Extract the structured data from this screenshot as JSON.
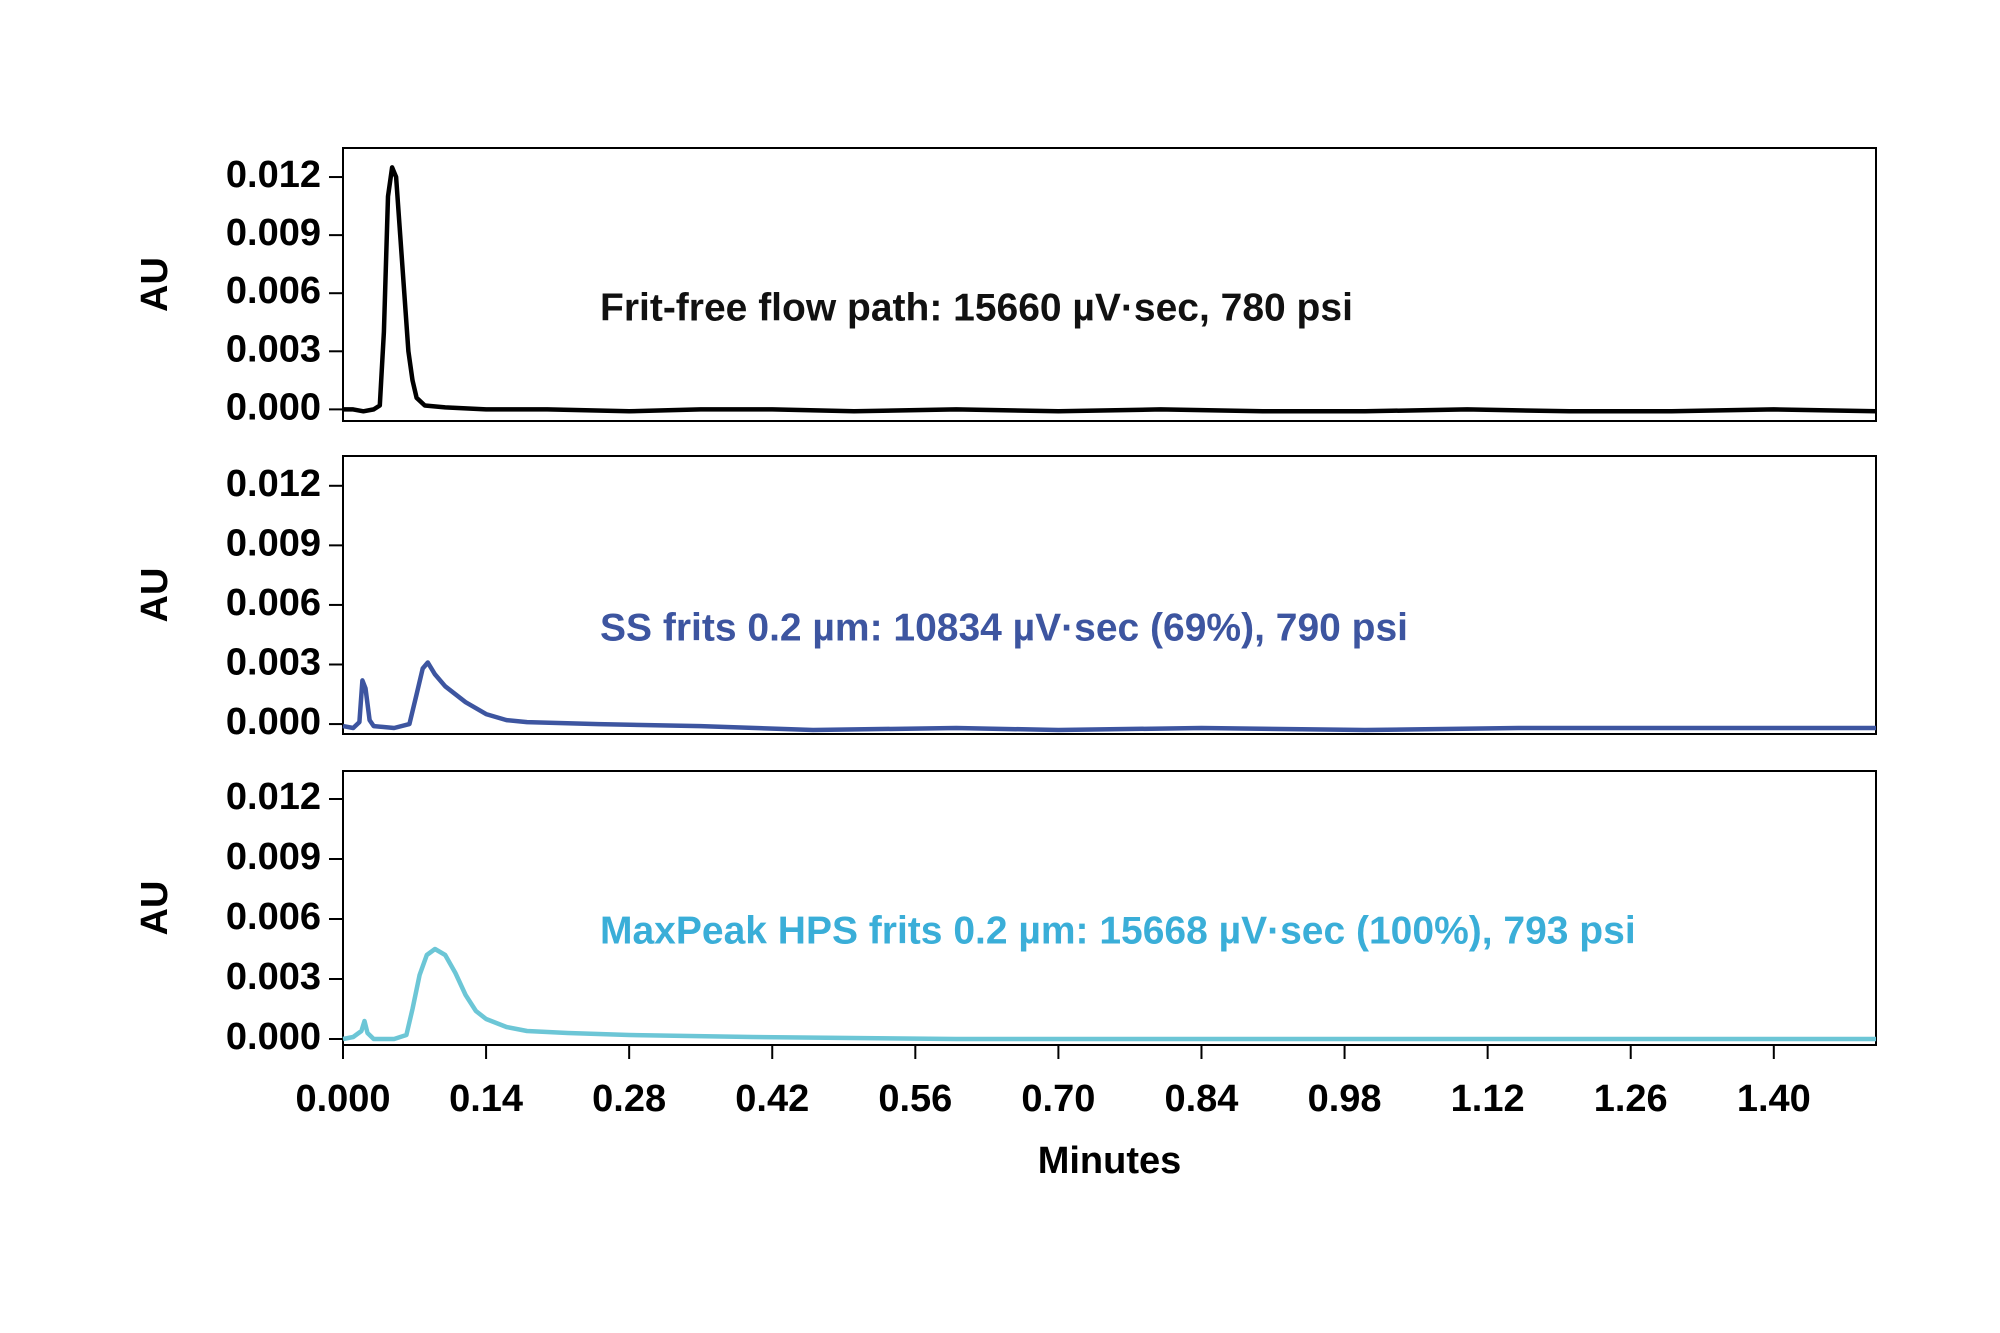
{
  "chart_data": [
    {
      "type": "line",
      "ylabel": "AU",
      "annotation": "Frit-free flow path: 15660 µV·sec, 780 psi",
      "annotation_color": "#111111",
      "color": "#000000",
      "xlim": [
        0,
        1.5
      ],
      "ylim": [
        -0.0006,
        0.0135
      ],
      "yticks": [
        {
          "value": 0,
          "label": "0.000"
        },
        {
          "value": 0.003,
          "label": "0.003"
        },
        {
          "value": 0.006,
          "label": "0.006"
        },
        {
          "value": 0.009,
          "label": "0.009"
        },
        {
          "value": 0.012,
          "label": "0.012"
        }
      ],
      "x": [
        0,
        0.01,
        0.02,
        0.03,
        0.036,
        0.04,
        0.044,
        0.048,
        0.052,
        0.056,
        0.06,
        0.064,
        0.068,
        0.072,
        0.08,
        0.1,
        0.14,
        0.2,
        0.28,
        0.35,
        0.42,
        0.5,
        0.6,
        0.7,
        0.8,
        0.9,
        1.0,
        1.1,
        1.2,
        1.3,
        1.4,
        1.5
      ],
      "values": [
        0,
        0,
        -0.0001,
        0,
        0.0002,
        0.004,
        0.011,
        0.0125,
        0.012,
        0.009,
        0.006,
        0.003,
        0.0015,
        0.0006,
        0.0002,
        0.0001,
        0,
        0,
        -0.0001,
        0,
        0,
        -0.0001,
        0,
        -0.0001,
        0,
        -0.0001,
        -0.0001,
        0,
        -0.0001,
        -0.0001,
        0,
        -0.0001
      ]
    },
    {
      "type": "line",
      "ylabel": "AU",
      "annotation": "SS frits 0.2 µm: 10834 µV·sec (69%), 790 psi",
      "annotation_color": "#3d55a0",
      "color": "#3d55a0",
      "xlim": [
        0,
        1.5
      ],
      "ylim": [
        -0.0005,
        0.0135
      ],
      "yticks": [
        {
          "value": 0,
          "label": "0.000"
        },
        {
          "value": 0.003,
          "label": "0.003"
        },
        {
          "value": 0.006,
          "label": "0.006"
        },
        {
          "value": 0.009,
          "label": "0.009"
        },
        {
          "value": 0.012,
          "label": "0.012"
        }
      ],
      "x": [
        0,
        0.01,
        0.016,
        0.019,
        0.022,
        0.026,
        0.03,
        0.05,
        0.065,
        0.072,
        0.078,
        0.083,
        0.09,
        0.1,
        0.12,
        0.14,
        0.16,
        0.18,
        0.25,
        0.35,
        0.46,
        0.6,
        0.7,
        0.84,
        1.0,
        1.15,
        1.3,
        1.5
      ],
      "values": [
        -0.0001,
        -0.0002,
        0.0001,
        0.0022,
        0.0018,
        0.0002,
        -0.0001,
        -0.0002,
        0,
        0.0015,
        0.0028,
        0.0031,
        0.0025,
        0.0019,
        0.0011,
        0.0005,
        0.0002,
        0.0001,
        0,
        -0.0001,
        -0.0003,
        -0.0002,
        -0.0003,
        -0.0002,
        -0.0003,
        -0.0002,
        -0.0002,
        -0.0002
      ]
    },
    {
      "type": "line",
      "ylabel": "AU",
      "xlabel": "Minutes",
      "annotation": "MaxPeak HPS frits 0.2 µm: 15668 µV·sec (100%), 793 psi",
      "annotation_color": "#3aaed8",
      "color": "#6cc6d6",
      "xlim": [
        0,
        1.5
      ],
      "ylim": [
        -0.0003,
        0.0134
      ],
      "yticks": [
        {
          "value": 0,
          "label": "0.000"
        },
        {
          "value": 0.003,
          "label": "0.003"
        },
        {
          "value": 0.006,
          "label": "0.006"
        },
        {
          "value": 0.009,
          "label": "0.009"
        },
        {
          "value": 0.012,
          "label": "0.012"
        }
      ],
      "xticks": [
        {
          "value": 0,
          "label": "0.000"
        },
        0.14,
        0.28,
        0.42,
        0.56,
        {
          "value": 0.7,
          "label": "0.70"
        },
        0.84,
        0.98,
        1.12,
        1.26,
        {
          "value": 1.4,
          "label": "1.40"
        }
      ],
      "x": [
        0,
        0.01,
        0.018,
        0.021,
        0.024,
        0.03,
        0.05,
        0.062,
        0.068,
        0.075,
        0.082,
        0.09,
        0.1,
        0.11,
        0.12,
        0.13,
        0.14,
        0.16,
        0.18,
        0.22,
        0.28,
        0.4,
        0.6,
        0.8,
        1.0,
        1.2,
        1.4,
        1.5
      ],
      "values": [
        0,
        0.0001,
        0.0004,
        0.0009,
        0.0003,
        0,
        0,
        0.0002,
        0.0015,
        0.0032,
        0.0042,
        0.0045,
        0.0042,
        0.0033,
        0.0022,
        0.0014,
        0.001,
        0.0006,
        0.0004,
        0.0003,
        0.0002,
        0.0001,
        0,
        0,
        0,
        0,
        0,
        0
      ]
    }
  ]
}
